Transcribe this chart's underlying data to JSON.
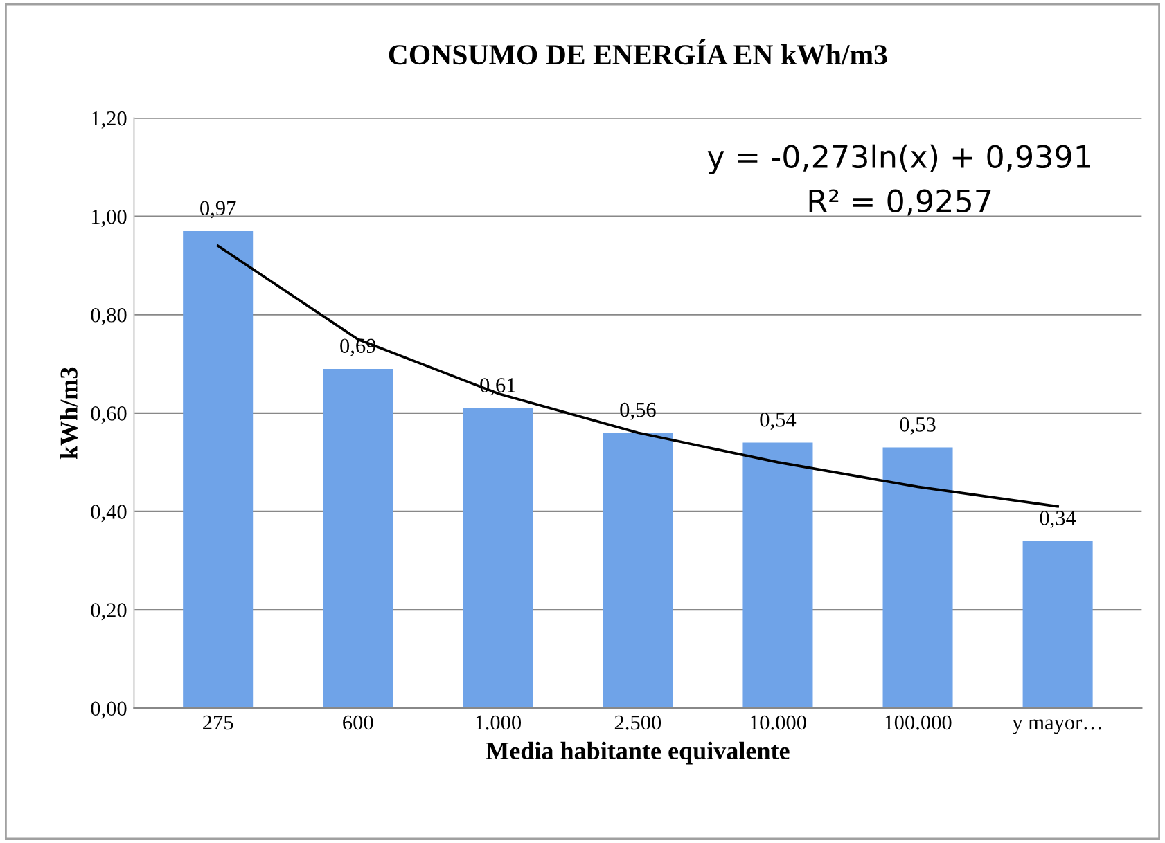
{
  "chart_data": {
    "type": "bar",
    "title": "CONSUMO DE ENERGÍA EN kWh/m3",
    "xlabel": "Media habitante equivalente",
    "ylabel": "kWh/m3",
    "categories": [
      "275",
      "600",
      "1.000",
      "2.500",
      "10.000",
      "100.000",
      "y mayor…"
    ],
    "series": [
      {
        "color": "#6fa3e8",
        "values": [
          0.97,
          0.69,
          0.61,
          0.56,
          0.54,
          0.53,
          0.34
        ],
        "value_labels": [
          "0,97",
          "0,69",
          "0,61",
          "0,56",
          "0,54",
          "0,53",
          "0,34"
        ]
      },
      {
        "type": "line",
        "color": "#000000",
        "values": [
          0.94,
          0.75,
          0.64,
          0.56,
          0.5,
          0.45,
          0.41
        ]
      }
    ],
    "annotations": [
      "y = -0,273ln(x) + 0,9391",
      "R² = 0,9257"
    ],
    "ylim": [
      0,
      1.2
    ],
    "yticks": [
      {
        "value": 0,
        "label": "0,00"
      },
      {
        "value": 0.2,
        "label": "0,20"
      },
      {
        "value": 0.4,
        "label": "0,40"
      },
      {
        "value": 0.6,
        "label": "0,60"
      },
      {
        "value": 0.8,
        "label": "0,80"
      },
      {
        "value": 1.0,
        "label": "1,00"
      },
      {
        "value": 1.2,
        "label": "1,20"
      }
    ],
    "grid": "y",
    "legend": false
  }
}
